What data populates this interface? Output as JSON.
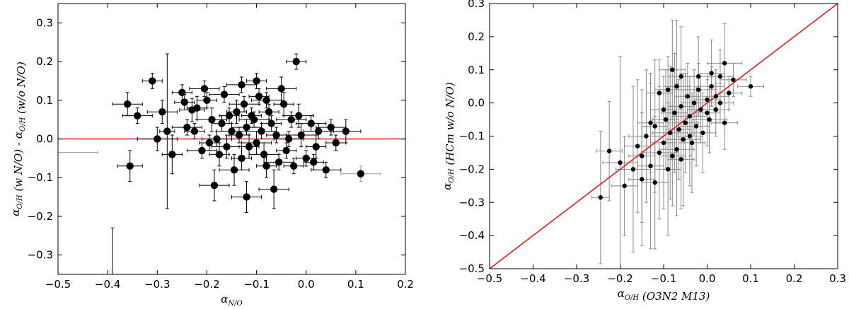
{
  "chart_data": [
    {
      "type": "scatter",
      "title": "",
      "xlabel_main": "α",
      "xlabel_sub": "N/O",
      "ylabel_parts": [
        {
          "text": "α",
          "sub": "O/H"
        },
        {
          "text": " (w N/O) - α",
          "sub": "O/H"
        },
        {
          "text": " (w/o N/O)",
          "sub": ""
        }
      ],
      "xlim": [
        -0.5,
        0.2
      ],
      "ylim": [
        -0.35,
        0.35
      ],
      "xticks": [
        "−0.5",
        "−0.4",
        "−0.3",
        "−0.2",
        "−0.1",
        "0.0",
        "0.1",
        "0.2"
      ],
      "xtick_values": [
        -0.5,
        -0.4,
        -0.3,
        -0.2,
        -0.1,
        0.0,
        0.1,
        0.2
      ],
      "yticks": [
        "0.3",
        "0.2",
        "0.1",
        "0.0",
        "−0.1",
        "−0.2",
        "−0.3"
      ],
      "ytick_values": [
        0.3,
        0.2,
        0.1,
        0.0,
        -0.1,
        -0.2,
        -0.3
      ],
      "reference_line": {
        "type": "horizontal",
        "y": 0.0,
        "color": "#e31a1c"
      },
      "marker_color": "#000000",
      "errorbar_color": "#000000",
      "errorbar_light_color": "#9a9a9a",
      "points": [
        {
          "x": -0.39,
          "y": -0.35,
          "xerr": 0.0,
          "yerr": 0.12,
          "nomarker": true
        },
        {
          "x": -0.46,
          "y": -0.035,
          "xerr": 0.04,
          "yerr": 0.0,
          "nomarker": true,
          "light": true
        },
        {
          "x": -0.355,
          "y": -0.07,
          "xerr": 0.025,
          "yerr": 0.04
        },
        {
          "x": -0.36,
          "y": 0.09,
          "xerr": 0.03,
          "yerr": 0.03
        },
        {
          "x": -0.34,
          "y": 0.06,
          "xerr": 0.03,
          "yerr": 0.02
        },
        {
          "x": -0.31,
          "y": 0.15,
          "xerr": 0.02,
          "yerr": 0.02
        },
        {
          "x": -0.3,
          "y": 0.0,
          "xerr": 0.04,
          "yerr": 0.03
        },
        {
          "x": -0.28,
          "y": 0.02,
          "xerr": 0.015,
          "yerr": 0.2
        },
        {
          "x": -0.27,
          "y": -0.04,
          "xerr": 0.02,
          "yerr": 0.05
        },
        {
          "x": -0.29,
          "y": 0.07,
          "xerr": 0.03,
          "yerr": 0.03
        },
        {
          "x": -0.25,
          "y": 0.12,
          "xerr": 0.02,
          "yerr": 0.02
        },
        {
          "x": -0.24,
          "y": 0.03,
          "xerr": 0.03,
          "yerr": 0.02
        },
        {
          "x": -0.22,
          "y": 0.08,
          "xerr": 0.02,
          "yerr": 0.03
        },
        {
          "x": -0.21,
          "y": -0.03,
          "xerr": 0.03,
          "yerr": 0.02
        },
        {
          "x": -0.2,
          "y": 0.1,
          "xerr": 0.02,
          "yerr": 0.02
        },
        {
          "x": -0.19,
          "y": 0.05,
          "xerr": 0.03,
          "yerr": 0.03
        },
        {
          "x": -0.18,
          "y": 0.0,
          "xerr": 0.03,
          "yerr": 0.02
        },
        {
          "x": -0.17,
          "y": 0.04,
          "xerr": 0.02,
          "yerr": 0.02
        },
        {
          "x": -0.16,
          "y": -0.02,
          "xerr": 0.03,
          "yerr": 0.03
        },
        {
          "x": -0.15,
          "y": 0.02,
          "xerr": 0.03,
          "yerr": 0.02
        },
        {
          "x": -0.14,
          "y": 0.07,
          "xerr": 0.02,
          "yerr": 0.03
        },
        {
          "x": -0.13,
          "y": 0.14,
          "xerr": 0.03,
          "yerr": 0.02
        },
        {
          "x": -0.13,
          "y": -0.05,
          "xerr": 0.02,
          "yerr": 0.03
        },
        {
          "x": -0.12,
          "y": 0.03,
          "xerr": 0.03,
          "yerr": 0.02
        },
        {
          "x": -0.12,
          "y": -0.15,
          "xerr": 0.03,
          "yerr": 0.04
        },
        {
          "x": -0.11,
          "y": 0.06,
          "xerr": 0.02,
          "yerr": 0.02
        },
        {
          "x": -0.1,
          "y": -0.01,
          "xerr": 0.03,
          "yerr": 0.03
        },
        {
          "x": -0.1,
          "y": 0.15,
          "xerr": 0.02,
          "yerr": 0.02
        },
        {
          "x": -0.09,
          "y": 0.02,
          "xerr": 0.03,
          "yerr": 0.02
        },
        {
          "x": -0.08,
          "y": -0.07,
          "xerr": 0.02,
          "yerr": 0.03
        },
        {
          "x": -0.08,
          "y": 0.1,
          "xerr": 0.03,
          "yerr": 0.02
        },
        {
          "x": -0.07,
          "y": 0.04,
          "xerr": 0.02,
          "yerr": 0.02
        },
        {
          "x": -0.065,
          "y": -0.13,
          "xerr": 0.03,
          "yerr": 0.05
        },
        {
          "x": -0.06,
          "y": 0.01,
          "xerr": 0.02,
          "yerr": 0.02
        },
        {
          "x": -0.05,
          "y": 0.13,
          "xerr": 0.03,
          "yerr": 0.03
        },
        {
          "x": -0.04,
          "y": -0.03,
          "xerr": 0.02,
          "yerr": 0.02
        },
        {
          "x": -0.03,
          "y": 0.05,
          "xerr": 0.03,
          "yerr": 0.02
        },
        {
          "x": -0.02,
          "y": 0.2,
          "xerr": 0.02,
          "yerr": 0.02
        },
        {
          "x": -0.01,
          "y": 0.01,
          "xerr": 0.03,
          "yerr": 0.03
        },
        {
          "x": 0.0,
          "y": -0.05,
          "xerr": 0.02,
          "yerr": 0.02
        },
        {
          "x": 0.01,
          "y": 0.04,
          "xerr": 0.03,
          "yerr": 0.02
        },
        {
          "x": 0.02,
          "y": -0.02,
          "xerr": 0.02,
          "yerr": 0.03
        },
        {
          "x": 0.04,
          "y": -0.08,
          "xerr": 0.03,
          "yerr": 0.02
        },
        {
          "x": 0.05,
          "y": 0.03,
          "xerr": 0.03,
          "yerr": 0.02
        },
        {
          "x": 0.06,
          "y": -0.01,
          "xerr": 0.02,
          "yerr": 0.02
        },
        {
          "x": 0.08,
          "y": 0.02,
          "xerr": 0.03,
          "yerr": 0.03
        },
        {
          "x": 0.11,
          "y": -0.09,
          "xerr": 0.04,
          "yerr": 0.02,
          "light": true
        },
        {
          "x": -0.205,
          "y": 0.13,
          "xerr": 0.03,
          "yerr": 0.02
        },
        {
          "x": -0.23,
          "y": 0.075,
          "xerr": 0.025,
          "yerr": 0.03
        },
        {
          "x": -0.165,
          "y": 0.115,
          "xerr": 0.03,
          "yerr": 0.02
        },
        {
          "x": -0.175,
          "y": -0.04,
          "xerr": 0.02,
          "yerr": 0.03
        },
        {
          "x": -0.155,
          "y": 0.06,
          "xerr": 0.02,
          "yerr": 0.02
        },
        {
          "x": -0.145,
          "y": -0.08,
          "xerr": 0.03,
          "yerr": 0.04
        },
        {
          "x": -0.135,
          "y": 0.01,
          "xerr": 0.02,
          "yerr": 0.02
        },
        {
          "x": -0.125,
          "y": 0.09,
          "xerr": 0.03,
          "yerr": 0.02
        },
        {
          "x": -0.115,
          "y": -0.02,
          "xerr": 0.02,
          "yerr": 0.03
        },
        {
          "x": -0.105,
          "y": 0.05,
          "xerr": 0.03,
          "yerr": 0.02
        },
        {
          "x": -0.095,
          "y": 0.11,
          "xerr": 0.02,
          "yerr": 0.02
        },
        {
          "x": -0.085,
          "y": -0.04,
          "xerr": 0.03,
          "yerr": 0.03
        },
        {
          "x": -0.075,
          "y": 0.07,
          "xerr": 0.02,
          "yerr": 0.02
        },
        {
          "x": -0.055,
          "y": -0.06,
          "xerr": 0.03,
          "yerr": 0.02
        },
        {
          "x": -0.045,
          "y": 0.09,
          "xerr": 0.02,
          "yerr": 0.03
        },
        {
          "x": -0.035,
          "y": 0.0,
          "xerr": 0.03,
          "yerr": 0.02
        },
        {
          "x": -0.025,
          "y": -0.07,
          "xerr": 0.02,
          "yerr": 0.02
        },
        {
          "x": -0.015,
          "y": 0.06,
          "xerr": 0.03,
          "yerr": 0.03
        },
        {
          "x": 0.015,
          "y": -0.06,
          "xerr": 0.02,
          "yerr": 0.02
        },
        {
          "x": 0.025,
          "y": 0.02,
          "xerr": 0.03,
          "yerr": 0.02
        },
        {
          "x": -0.195,
          "y": -0.01,
          "xerr": 0.02,
          "yerr": 0.02
        },
        {
          "x": -0.185,
          "y": -0.12,
          "xerr": 0.03,
          "yerr": 0.04
        },
        {
          "x": -0.225,
          "y": 0.02,
          "xerr": 0.02,
          "yerr": 0.02
        },
        {
          "x": -0.245,
          "y": 0.095,
          "xerr": 0.02,
          "yerr": 0.02
        }
      ]
    },
    {
      "type": "scatter",
      "title": "",
      "xlabel_parts": [
        {
          "text": "α",
          "sub": "O/H"
        },
        {
          "text": " (O3N2 M13)",
          "sub": ""
        }
      ],
      "ylabel_parts": [
        {
          "text": "α",
          "sub": "O/H"
        },
        {
          "text": " (HCm w/o N/O)",
          "sub": ""
        }
      ],
      "xlim": [
        -0.5,
        0.3
      ],
      "ylim": [
        -0.5,
        0.3
      ],
      "xticks": [
        "−0.5",
        "−0.4",
        "−0.3",
        "−0.2",
        "−0.1",
        "0.0",
        "0.1",
        "0.2",
        "0.3"
      ],
      "xtick_values": [
        -0.5,
        -0.4,
        -0.3,
        -0.2,
        -0.1,
        0.0,
        0.1,
        0.2,
        0.3
      ],
      "yticks": [
        "0.3",
        "0.2",
        "0.1",
        "0.0",
        "−0.1",
        "−0.2",
        "−0.3",
        "−0.4",
        "−0.5"
      ],
      "ytick_values": [
        0.3,
        0.2,
        0.1,
        0.0,
        -0.1,
        -0.2,
        -0.3,
        -0.4,
        -0.5
      ],
      "reference_line": {
        "type": "diagonal",
        "from": [
          -0.5,
          -0.5
        ],
        "to": [
          0.3,
          0.3
        ],
        "color": "#e31a1c"
      },
      "marker_color": "#000000",
      "errorbar_color": "#888888",
      "points": [
        {
          "x": -0.245,
          "y": -0.285,
          "xerr": 0.02,
          "yerr": 0.2
        },
        {
          "x": -0.225,
          "y": -0.145,
          "xerr": 0.03,
          "yerr": 0.15
        },
        {
          "x": -0.2,
          "y": -0.18,
          "xerr": 0.04,
          "yerr": 0.32
        },
        {
          "x": -0.19,
          "y": -0.25,
          "xerr": 0.03,
          "yerr": 0.15
        },
        {
          "x": -0.17,
          "y": -0.2,
          "xerr": 0.04,
          "yerr": 0.25
        },
        {
          "x": -0.16,
          "y": -0.13,
          "xerr": 0.03,
          "yerr": 0.2
        },
        {
          "x": -0.15,
          "y": -0.16,
          "xerr": 0.03,
          "yerr": 0.2
        },
        {
          "x": -0.14,
          "y": -0.1,
          "xerr": 0.04,
          "yerr": 0.2
        },
        {
          "x": -0.13,
          "y": -0.19,
          "xerr": 0.03,
          "yerr": 0.25
        },
        {
          "x": -0.12,
          "y": -0.07,
          "xerr": 0.03,
          "yerr": 0.2
        },
        {
          "x": -0.11,
          "y": -0.15,
          "xerr": 0.04,
          "yerr": 0.2
        },
        {
          "x": -0.1,
          "y": -0.12,
          "xerr": 0.03,
          "yerr": 0.2
        },
        {
          "x": -0.095,
          "y": -0.05,
          "xerr": 0.03,
          "yerr": 0.15
        },
        {
          "x": -0.09,
          "y": -0.2,
          "xerr": 0.03,
          "yerr": 0.2
        },
        {
          "x": -0.085,
          "y": -0.09,
          "xerr": 0.04,
          "yerr": 0.2
        },
        {
          "x": -0.08,
          "y": 0.1,
          "xerr": 0.03,
          "yerr": 0.15
        },
        {
          "x": -0.075,
          "y": -0.03,
          "xerr": 0.03,
          "yerr": 0.18
        },
        {
          "x": -0.07,
          "y": -0.14,
          "xerr": 0.04,
          "yerr": 0.2
        },
        {
          "x": -0.065,
          "y": -0.08,
          "xerr": 0.03,
          "yerr": 0.15
        },
        {
          "x": -0.06,
          "y": -0.01,
          "xerr": 0.03,
          "yerr": 0.1
        },
        {
          "x": -0.055,
          "y": -0.11,
          "xerr": 0.04,
          "yerr": 0.2
        },
        {
          "x": -0.05,
          "y": -0.06,
          "xerr": 0.03,
          "yerr": 0.15
        },
        {
          "x": -0.045,
          "y": 0.02,
          "xerr": 0.03,
          "yerr": 0.1
        },
        {
          "x": -0.04,
          "y": -0.04,
          "xerr": 0.04,
          "yerr": 0.12
        },
        {
          "x": -0.035,
          "y": -0.12,
          "xerr": 0.03,
          "yerr": 0.15
        },
        {
          "x": -0.03,
          "y": 0.0,
          "xerr": 0.03,
          "yerr": 0.1
        },
        {
          "x": -0.025,
          "y": -0.07,
          "xerr": 0.03,
          "yerr": 0.12
        },
        {
          "x": -0.02,
          "y": 0.04,
          "xerr": 0.04,
          "yerr": 0.08
        },
        {
          "x": -0.015,
          "y": -0.02,
          "xerr": 0.03,
          "yerr": 0.1
        },
        {
          "x": -0.01,
          "y": -0.09,
          "xerr": 0.03,
          "yerr": 0.12
        },
        {
          "x": 0.0,
          "y": 0.01,
          "xerr": 0.03,
          "yerr": 0.08
        },
        {
          "x": 0.005,
          "y": -0.05,
          "xerr": 0.04,
          "yerr": 0.1
        },
        {
          "x": 0.01,
          "y": 0.05,
          "xerr": 0.03,
          "yerr": 0.06
        },
        {
          "x": 0.02,
          "y": -0.02,
          "xerr": 0.03,
          "yerr": 0.08
        },
        {
          "x": 0.03,
          "y": 0.0,
          "xerr": 0.03,
          "yerr": 0.06
        },
        {
          "x": 0.04,
          "y": 0.12,
          "xerr": 0.04,
          "yerr": 0.12
        },
        {
          "x": 0.05,
          "y": 0.03,
          "xerr": 0.03,
          "yerr": 0.05
        },
        {
          "x": 0.06,
          "y": 0.07,
          "xerr": 0.03,
          "yerr": 0.05
        },
        {
          "x": 0.1,
          "y": 0.05,
          "xerr": 0.03,
          "yerr": 0.03
        },
        {
          "x": -0.11,
          "y": 0.03,
          "xerr": 0.03,
          "yerr": 0.1
        },
        {
          "x": -0.1,
          "y": -0.02,
          "xerr": 0.03,
          "yerr": 0.1
        },
        {
          "x": -0.09,
          "y": 0.04,
          "xerr": 0.03,
          "yerr": 0.1
        },
        {
          "x": -0.07,
          "y": 0.05,
          "xerr": 0.03,
          "yerr": 0.2
        },
        {
          "x": -0.13,
          "y": -0.06,
          "xerr": 0.03,
          "yerr": 0.15
        },
        {
          "x": -0.15,
          "y": -0.23,
          "xerr": 0.03,
          "yerr": 0.2
        },
        {
          "x": -0.12,
          "y": -0.24,
          "xerr": 0.03,
          "yerr": 0.2
        },
        {
          "x": -0.08,
          "y": -0.16,
          "xerr": 0.03,
          "yerr": 0.15
        },
        {
          "x": -0.06,
          "y": -0.17,
          "xerr": 0.03,
          "yerr": 0.15
        },
        {
          "x": -0.04,
          "y": -0.1,
          "xerr": 0.03,
          "yerr": 0.15
        },
        {
          "x": 0.0,
          "y": -0.03,
          "xerr": 0.03,
          "yerr": 0.1
        },
        {
          "x": 0.02,
          "y": 0.02,
          "xerr": 0.03,
          "yerr": 0.08
        },
        {
          "x": 0.03,
          "y": 0.08,
          "xerr": 0.03,
          "yerr": 0.08
        },
        {
          "x": 0.01,
          "y": 0.09,
          "xerr": 0.03,
          "yerr": 0.1
        },
        {
          "x": -0.02,
          "y": 0.08,
          "xerr": 0.03,
          "yerr": 0.12
        },
        {
          "x": 0.04,
          "y": -0.06,
          "xerr": 0.03,
          "yerr": 0.08
        },
        {
          "x": -0.06,
          "y": 0.08,
          "xerr": 0.03,
          "yerr": 0.15
        }
      ]
    }
  ]
}
